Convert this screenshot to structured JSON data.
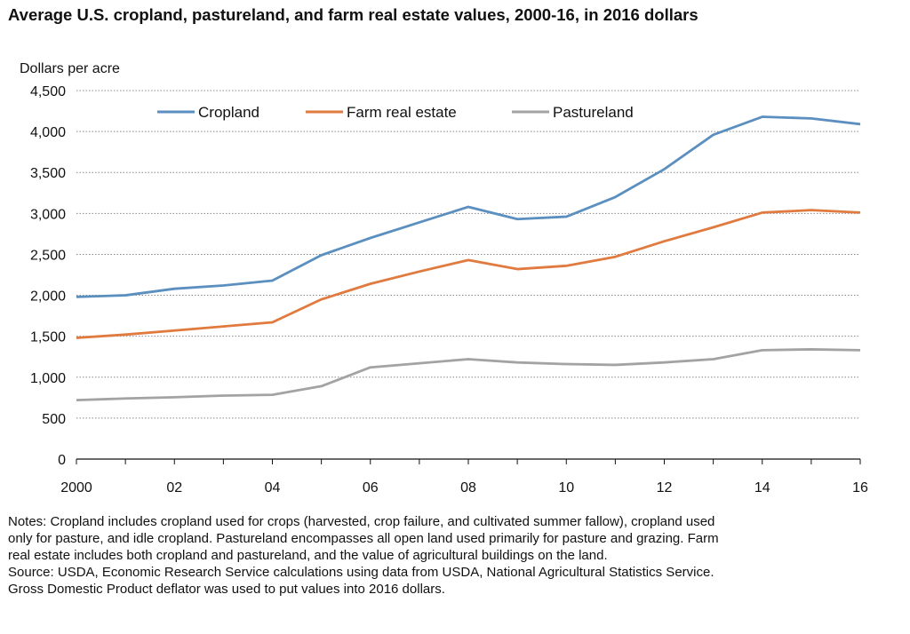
{
  "chart_data": {
    "type": "line",
    "title": "Average U.S. cropland, pastureland, and farm real estate values, 2000-16, in 2016 dollars",
    "ylabel": "Dollars per acre",
    "xlabel": "",
    "ylim": [
      0,
      4500
    ],
    "yticks": [
      "0",
      "500",
      "1,000",
      "1,500",
      "2,000",
      "2,500",
      "3,000",
      "3,500",
      "4,000",
      "4,500"
    ],
    "xtick_labels": [
      "2000",
      "02",
      "04",
      "06",
      "08",
      "10",
      "12",
      "14",
      "16"
    ],
    "x": [
      2000,
      2001,
      2002,
      2003,
      2004,
      2005,
      2006,
      2007,
      2008,
      2009,
      2010,
      2011,
      2012,
      2013,
      2014,
      2015,
      2016
    ],
    "grid": true,
    "legend_position": "top",
    "series": [
      {
        "name": "Cropland",
        "color": "#5b8fc0",
        "values": [
          1980,
          2000,
          2080,
          2120,
          2180,
          2490,
          2700,
          2890,
          3080,
          2930,
          2960,
          3200,
          3540,
          3960,
          4180,
          4160,
          4090
        ]
      },
      {
        "name": "Farm real estate",
        "color": "#e07a3f",
        "values": [
          1480,
          1520,
          1570,
          1620,
          1670,
          1950,
          2140,
          2290,
          2430,
          2320,
          2360,
          2470,
          2660,
          2830,
          3010,
          3040,
          3010
        ]
      },
      {
        "name": "Pastureland",
        "color": "#a3a3a3",
        "values": [
          720,
          740,
          755,
          775,
          785,
          890,
          1120,
          1170,
          1220,
          1180,
          1160,
          1150,
          1180,
          1220,
          1330,
          1340,
          1330
        ]
      }
    ]
  },
  "notes": [
    "Notes: Cropland includes cropland used for crops (harvested, crop failure, and cultivated summer fallow), cropland used",
    "only for pasture, and idle cropland. Pastureland encompasses all open land used primarily for pasture and grazing. Farm",
    "real estate includes both cropland and pastureland, and the value of agricultural buildings on the land.",
    "Source: USDA, Economic Research Service calculations using data from USDA, National Agricultural Statistics Service.",
    "Gross Domestic Product deflator was used to put values into 2016 dollars."
  ]
}
